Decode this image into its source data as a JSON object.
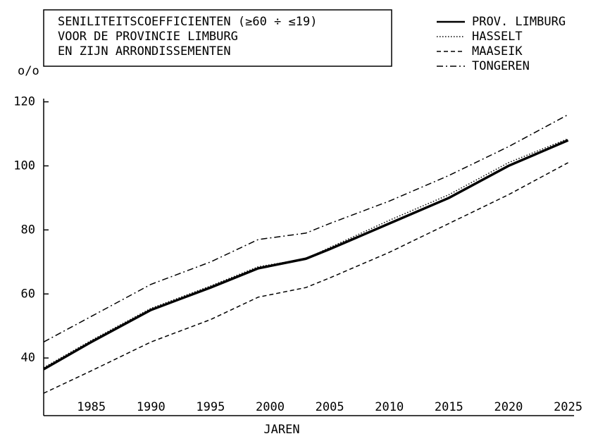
{
  "chart_data": {
    "type": "line",
    "title_lines": [
      "SENILITEITSCOEFFICIENTEN (≥60 ÷ ≤19)",
      "VOOR DE PROVINCIE LIMBURG",
      "EN ZIJN ARRONDISSEMENTEN"
    ],
    "ylabel": "o/o",
    "xlabel": "JAREN",
    "x": [
      1981,
      1985,
      1990,
      1995,
      1999,
      2003,
      2005,
      2010,
      2015,
      2020,
      2025
    ],
    "series": [
      {
        "name": "PROV. LIMBURG",
        "color": "#000000",
        "style": "solid",
        "values": [
          36.5,
          45,
          55,
          62,
          68,
          71,
          74,
          82,
          90,
          100,
          108
        ]
      },
      {
        "name": "HASSELT",
        "color": "#000000",
        "style": "dotted",
        "values": [
          37,
          45.5,
          55.5,
          62.5,
          68.5,
          71,
          74.5,
          83,
          91,
          101,
          108.5
        ]
      },
      {
        "name": "MAASEIK",
        "color": "#000000",
        "style": "dashed",
        "values": [
          29,
          36,
          45,
          52,
          59,
          62,
          65,
          73,
          82,
          91,
          101
        ]
      },
      {
        "name": "TONGEREN",
        "color": "#000000",
        "style": "dashdot",
        "values": [
          45,
          53,
          63,
          70,
          77,
          79,
          82,
          89,
          97,
          106,
          116
        ]
      }
    ],
    "xlim": [
      1981,
      2025.5
    ],
    "xticks": [
      1985,
      1990,
      1995,
      2000,
      2005,
      2010,
      2015,
      2020,
      2025
    ],
    "ylim": [
      22,
      121
    ],
    "yticks": [
      40,
      60,
      80,
      100,
      120
    ],
    "legend": "upper right",
    "grid": false
  }
}
